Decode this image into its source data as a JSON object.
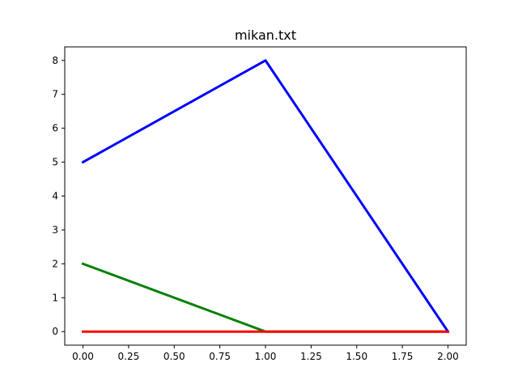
{
  "chart_data": {
    "type": "line",
    "title": "mikan.txt",
    "xlabel": "",
    "ylabel": "",
    "xlim": [
      -0.1,
      2.1
    ],
    "ylim": [
      -0.4,
      8.4
    ],
    "x_ticks": [
      0.0,
      0.25,
      0.5,
      0.75,
      1.0,
      1.25,
      1.5,
      1.75,
      2.0
    ],
    "x_tick_labels": [
      "0.00",
      "0.25",
      "0.50",
      "0.75",
      "1.00",
      "1.25",
      "1.50",
      "1.75",
      "2.00"
    ],
    "y_ticks": [
      0,
      1,
      2,
      3,
      4,
      5,
      6,
      7,
      8
    ],
    "y_tick_labels": [
      "0",
      "1",
      "2",
      "3",
      "4",
      "5",
      "6",
      "7",
      "8"
    ],
    "grid": false,
    "legend": "none",
    "x": [
      0,
      1,
      2
    ],
    "series": [
      {
        "color": "#0000ff",
        "values": [
          5,
          8,
          0
        ]
      },
      {
        "color": "#008000",
        "values": [
          2,
          0,
          0
        ]
      },
      {
        "color": "#ff0000",
        "values": [
          0,
          0,
          0
        ]
      }
    ]
  }
}
